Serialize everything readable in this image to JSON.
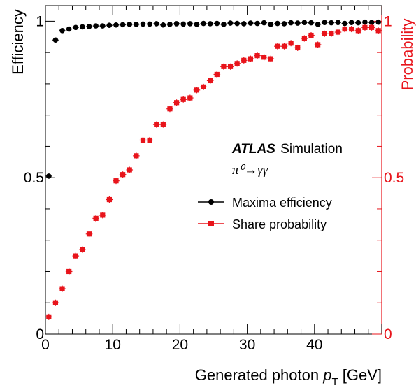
{
  "chart_data": {
    "type": "scatter",
    "xlabel_text": "Generated photon ",
    "xlabel_var": "p",
    "xlabel_sub": "T",
    "xlabel_unit": " [GeV]",
    "ylabel_left": "Efficiency",
    "ylabel_right": "Probability",
    "xlim": [
      0,
      50
    ],
    "ylim": [
      0,
      1.05
    ],
    "y2lim": [
      0,
      1.05
    ],
    "x_ticks": [
      0,
      10,
      20,
      30,
      40
    ],
    "x_tick_labels": [
      "0",
      "10",
      "20",
      "30",
      "40"
    ],
    "y_ticks": [
      0,
      0.5,
      1
    ],
    "y_tick_labels": [
      "0",
      "0.5",
      "1"
    ],
    "y2_ticks": [
      0,
      0.5,
      1
    ],
    "y2_tick_labels": [
      "0",
      "0.5",
      "1"
    ],
    "grid": false,
    "legend_position": "middle-right",
    "annotations": {
      "experiment": "ATLAS",
      "simulation": "Simulation",
      "process": "π⁰→γγ"
    },
    "series": [
      {
        "name": "Maxima efficiency",
        "color": "#000000",
        "marker": "circle",
        "axis": "left",
        "x": [
          0.5,
          1.5,
          2.5,
          3.5,
          4.5,
          5.5,
          6.5,
          7.5,
          8.5,
          9.5,
          10.5,
          11.5,
          12.5,
          13.5,
          14.5,
          15.5,
          16.5,
          17.5,
          18.5,
          19.5,
          20.5,
          21.5,
          22.5,
          23.5,
          24.5,
          25.5,
          26.5,
          27.5,
          28.5,
          29.5,
          30.5,
          31.5,
          32.5,
          33.5,
          34.5,
          35.5,
          36.5,
          37.5,
          38.5,
          39.5,
          40.5,
          41.5,
          42.5,
          43.5,
          44.5,
          45.5,
          46.5,
          47.5,
          48.5,
          49.5
        ],
        "y": [
          0.505,
          0.94,
          0.97,
          0.975,
          0.98,
          0.982,
          0.983,
          0.985,
          0.985,
          0.987,
          0.988,
          0.989,
          0.99,
          0.99,
          0.991,
          0.991,
          0.992,
          0.988,
          0.99,
          0.992,
          0.991,
          0.992,
          0.99,
          0.993,
          0.992,
          0.993,
          0.99,
          0.994,
          0.993,
          0.992,
          0.994,
          0.993,
          0.995,
          0.99,
          0.993,
          0.992,
          0.995,
          0.994,
          0.996,
          0.995,
          0.99,
          0.996,
          0.995,
          0.996,
          0.993,
          0.996,
          0.995,
          0.997,
          0.996,
          0.997
        ]
      },
      {
        "name": "Share probability",
        "color": "#e8141b",
        "marker": "square",
        "axis": "right",
        "x": [
          0.5,
          1.5,
          2.5,
          3.5,
          4.5,
          5.5,
          6.5,
          7.5,
          8.5,
          9.5,
          10.5,
          11.5,
          12.5,
          13.5,
          14.5,
          15.5,
          16.5,
          17.5,
          18.5,
          19.5,
          20.5,
          21.5,
          22.5,
          23.5,
          24.5,
          25.5,
          26.5,
          27.5,
          28.5,
          29.5,
          30.5,
          31.5,
          32.5,
          33.5,
          34.5,
          35.5,
          36.5,
          37.5,
          38.5,
          39.5,
          40.5,
          41.5,
          42.5,
          43.5,
          44.5,
          45.5,
          46.5,
          47.5,
          48.5,
          49.5
        ],
        "y": [
          0.055,
          0.1,
          0.145,
          0.2,
          0.25,
          0.27,
          0.32,
          0.37,
          0.38,
          0.43,
          0.49,
          0.51,
          0.525,
          0.57,
          0.62,
          0.62,
          0.67,
          0.67,
          0.72,
          0.74,
          0.75,
          0.755,
          0.78,
          0.79,
          0.81,
          0.83,
          0.855,
          0.855,
          0.865,
          0.875,
          0.88,
          0.89,
          0.885,
          0.88,
          0.92,
          0.92,
          0.93,
          0.915,
          0.945,
          0.955,
          0.925,
          0.96,
          0.96,
          0.965,
          0.975,
          0.975,
          0.97,
          0.98,
          0.98,
          0.97
        ]
      }
    ]
  }
}
